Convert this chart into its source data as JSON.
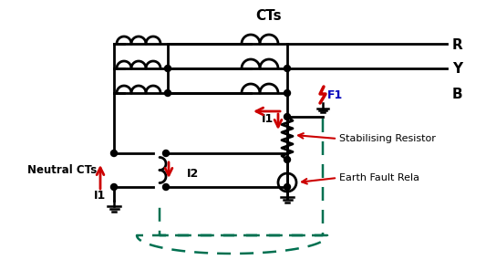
{
  "bg_color": "#ffffff",
  "line_color": "#000000",
  "red_color": "#cc0000",
  "green_color": "#007050",
  "blue_color": "#0000bb",
  "label_CTs": "CTs",
  "label_R": "R",
  "label_Y": "Y",
  "label_B": "B",
  "label_F1": "F1",
  "label_I1_mid": "I1",
  "label_I2": "I2",
  "label_I1_bot": "I1",
  "label_neutral_cts": "Neutral CTs",
  "label_stab_res": "Stabilising Resistor",
  "label_earth_fault": "Earth Fault Rela",
  "figsize": [
    5.33,
    2.96
  ],
  "dpi": 100
}
